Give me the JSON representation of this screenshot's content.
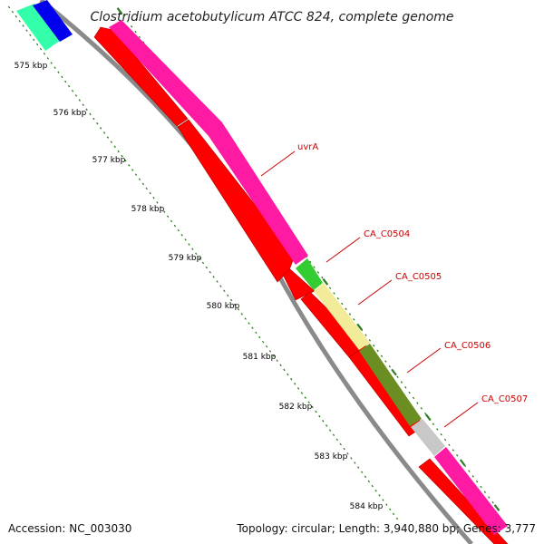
{
  "title": "Clostridium acetobutylicum ATCC 824, complete genome",
  "accession_text": "Accession: NC_003030",
  "stats_text": "Topology: circular; Length: 3,940,880 bp; Genes: 3,777",
  "kbp_labels": [
    "575 kbp",
    "576 kbp",
    "577 kbp",
    "578 kbp",
    "579 kbp",
    "580 kbp",
    "581 kbp",
    "582 kbp",
    "583 kbp",
    "584 kbp"
  ],
  "gene_labels": [
    "uvrA",
    "CA_C0504",
    "CA_C0505",
    "CA_C0506",
    "CA_C0507"
  ],
  "colors": {
    "backbone": "#8a8a8a",
    "cds": "#ff0000",
    "tick": "#2e7d1e",
    "label": "#cc0000",
    "uvrA": "#ff1aa3",
    "CA_C0504": "#33cc33",
    "CA_C0505": "#f2ec9a",
    "CA_C0506": "#6b8e23",
    "CA_C0507": "#c8c8c8",
    "gene_cyan": "#33ffaa",
    "gene_blue": "#0000ee",
    "gene_pink_end": "#ff1aa3"
  }
}
